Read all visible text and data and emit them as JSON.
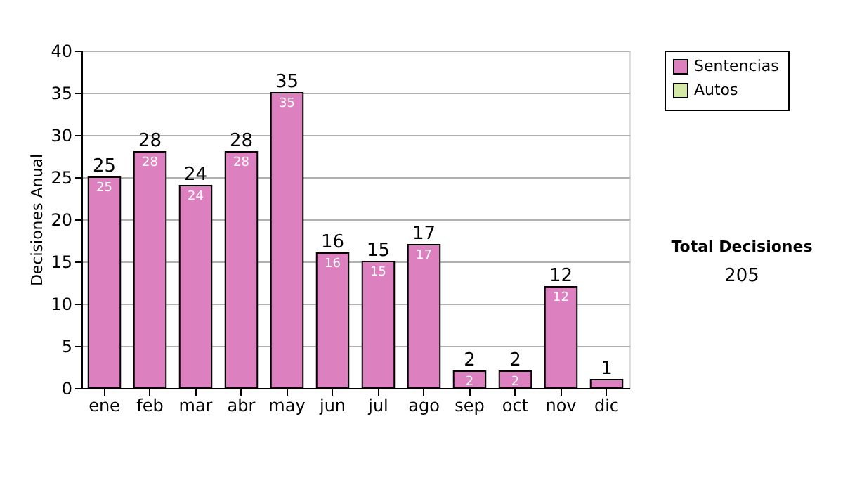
{
  "chart_data": {
    "type": "bar",
    "stacked": true,
    "ylabel": "Decisiones Anual",
    "categories": [
      "ene",
      "feb",
      "mar",
      "abr",
      "may",
      "jun",
      "jul",
      "ago",
      "sep",
      "oct",
      "nov",
      "dic"
    ],
    "series": [
      {
        "name": "Sentencias",
        "color": "#dd80c0",
        "values": [
          25,
          28,
          24,
          28,
          35,
          16,
          15,
          17,
          2,
          2,
          12,
          1
        ],
        "value_labels": [
          "25",
          "28",
          "24",
          "28",
          "35",
          "16",
          "15",
          "17",
          "2",
          "2",
          "12",
          null
        ]
      },
      {
        "name": "Autos",
        "color": "#d4e8a8",
        "values": [
          0,
          0,
          0,
          0,
          0,
          0,
          0,
          0,
          0,
          0,
          0,
          0
        ]
      }
    ],
    "totals": [
      "25",
      "28",
      "24",
      "28",
      "35",
      "16",
      "15",
      "17",
      "2",
      "2",
      "12",
      "1"
    ],
    "ylim": [
      0,
      40
    ],
    "yticks": [
      0,
      5,
      10,
      15,
      20,
      25,
      30,
      35,
      40
    ],
    "grid": "y",
    "legend": "right",
    "annotations": [
      "Total Decisiones",
      "205"
    ]
  }
}
